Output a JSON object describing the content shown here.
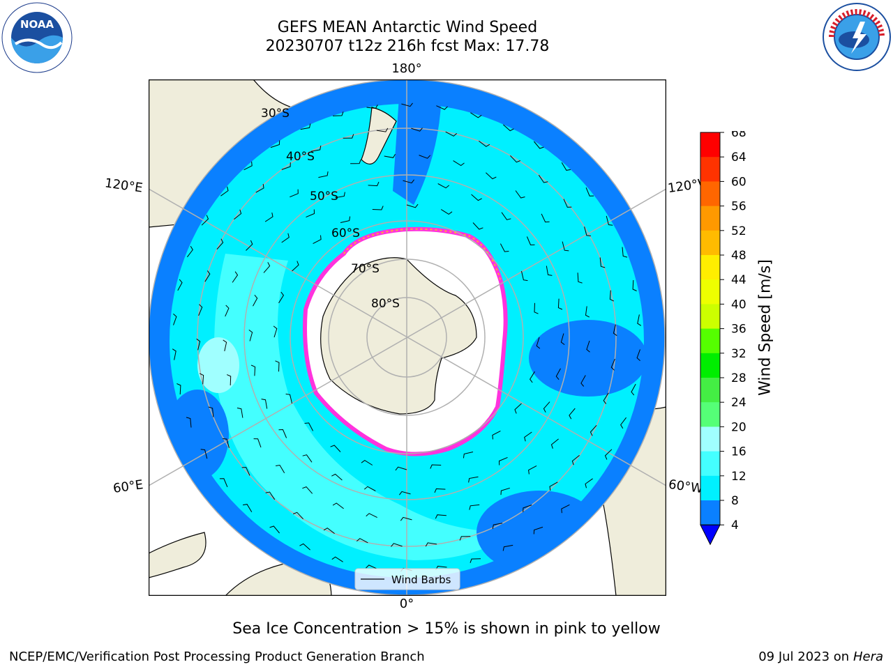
{
  "title": {
    "line1": "GEFS MEAN Antarctic Wind Speed",
    "line2": "20230707 t12z 216h fcst   Max: 17.78"
  },
  "map": {
    "projection": "south-polar-stereographic",
    "lat_labels": [
      "30°S",
      "40°S",
      "50°S",
      "60°S",
      "70°S",
      "80°S"
    ],
    "lon_labels": {
      "top": "180°",
      "bottom": "0°",
      "upper_left": "120°E",
      "lower_left": "60°E",
      "upper_right": "120°W",
      "lower_right": "60°W"
    },
    "legend_label": "Wind Barbs",
    "colors": {
      "ocean_dark": "#0a80ff",
      "ocean_cyan": "#00f0ff",
      "ocean_light": "#44ffff",
      "ocean_pale": "#a0ffff",
      "land": "#efeddb",
      "ice": "#ffffff",
      "ice_edge_pink": "#ff33dd",
      "ice_edge_yellow": "#ffb030",
      "grid": "#b0b0b0"
    }
  },
  "colorbar": {
    "label": "Wind Speed [m/s]",
    "ticks": [
      "4",
      "8",
      "12",
      "16",
      "20",
      "24",
      "28",
      "32",
      "36",
      "40",
      "44",
      "48",
      "52",
      "56",
      "60",
      "64",
      "68"
    ],
    "colors": [
      "#0000ff",
      "#0a80ff",
      "#00f0ff",
      "#44ffff",
      "#a0ffff",
      "#55ff77",
      "#44ee44",
      "#00ee00",
      "#55ff00",
      "#ccff00",
      "#eeff00",
      "#ffee00",
      "#ffbb00",
      "#ff9900",
      "#ff6600",
      "#ff3300",
      "#ff0000"
    ]
  },
  "note": "Sea Ice Concentration > 15% is shown in pink to yellow",
  "footer": {
    "left": "NCEP/EMC/Verification Post Processing Product Generation Branch",
    "right_date": "09 Jul 2023 on",
    "right_machine": "Hera"
  },
  "logos": {
    "noaa": "NOAA",
    "nws": "NATIONAL WEATHER SERVICE"
  }
}
